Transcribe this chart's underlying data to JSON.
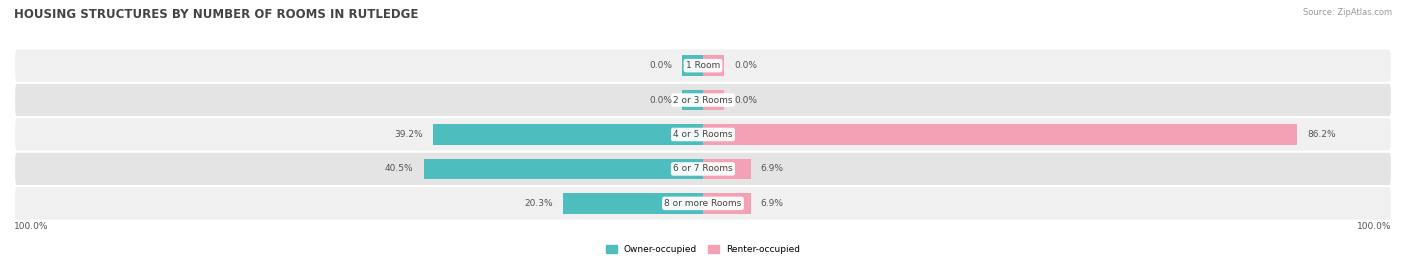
{
  "title": "HOUSING STRUCTURES BY NUMBER OF ROOMS IN RUTLEDGE",
  "source": "Source: ZipAtlas.com",
  "categories": [
    "1 Room",
    "2 or 3 Rooms",
    "4 or 5 Rooms",
    "6 or 7 Rooms",
    "8 or more Rooms"
  ],
  "owner_values": [
    0.0,
    0.0,
    39.2,
    40.5,
    20.3
  ],
  "renter_values": [
    0.0,
    0.0,
    86.2,
    6.9,
    6.9
  ],
  "owner_color": "#4dbdbd",
  "renter_color": "#f4a0b5",
  "row_bg_even": "#f0f0f0",
  "row_bg_odd": "#e4e4e4",
  "title_fontsize": 8.5,
  "label_fontsize": 6.5,
  "source_fontsize": 6,
  "axis_label_fontsize": 6.5,
  "max_value": 100.0,
  "figsize": [
    14.06,
    2.69
  ],
  "dpi": 100,
  "left_label": "100.0%",
  "right_label": "100.0%",
  "legend_owner": "Owner-occupied",
  "legend_renter": "Renter-occupied",
  "stub_size": 3.0,
  "bar_height": 0.6
}
